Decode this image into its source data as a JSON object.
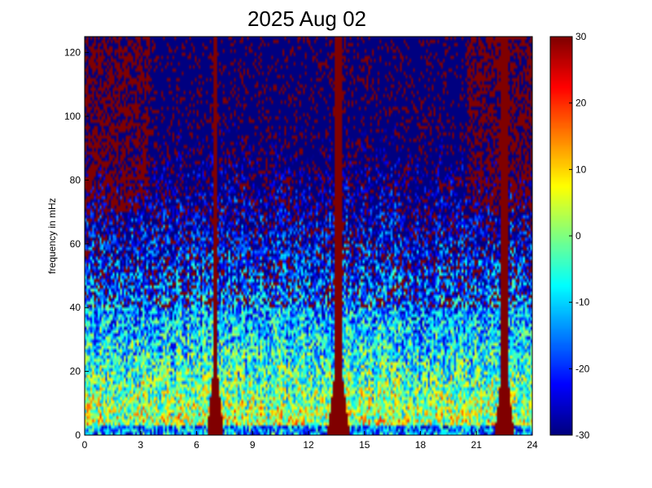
{
  "chart_data": {
    "type": "heatmap",
    "title": "2025 Aug 02",
    "xlabel": "",
    "ylabel": "frequency in mHz",
    "xlim": [
      0,
      24
    ],
    "ylim": [
      0,
      125
    ],
    "x_ticks": [
      "0",
      "3",
      "6",
      "9",
      "12",
      "15",
      "18",
      "21",
      "24"
    ],
    "y_ticks": [
      "0",
      "20",
      "40",
      "60",
      "80",
      "100",
      "120"
    ],
    "colorbar": {
      "range": [
        -30,
        30
      ],
      "ticks": [
        "30",
        "20",
        "10",
        "0",
        "-10",
        "-20",
        "-30"
      ],
      "colormap": "jet"
    },
    "grid": false,
    "saturated_event_bands": [
      {
        "center": 7.0,
        "width": 0.25,
        "value": 30
      },
      {
        "center": 13.6,
        "width": 0.35,
        "value": 30
      },
      {
        "center": 22.5,
        "width": 0.3,
        "value": 30
      }
    ],
    "narrow_lines": [
      {
        "center": 22.1,
        "width": 0.1,
        "value": -8
      },
      {
        "center": 13.2,
        "width": 0.08,
        "value": -5
      }
    ]
  }
}
